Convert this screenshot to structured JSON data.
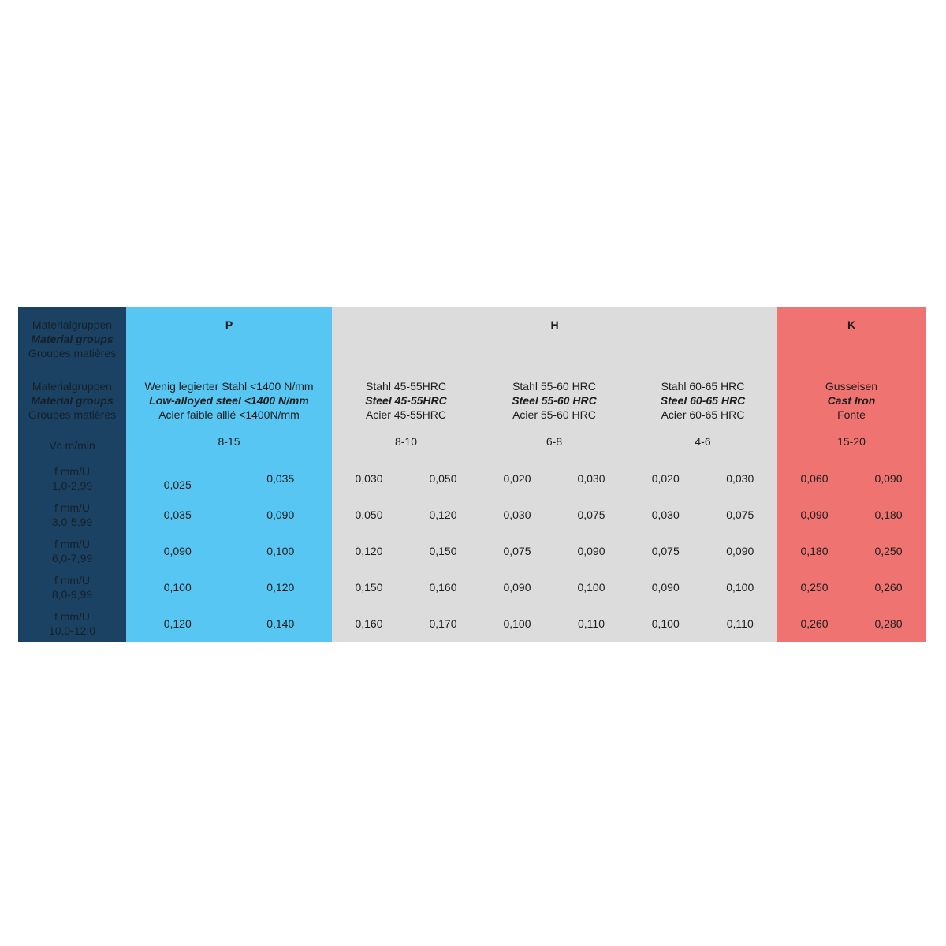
{
  "label_header": [
    "Materialgruppen",
    "Material groups",
    "Groupes matières"
  ],
  "vc_label": "Vc m/min",
  "groups": [
    {
      "code": "P",
      "color": "#57c6f2"
    },
    {
      "code": "H",
      "color": "#dcdcdc"
    },
    {
      "code": "K",
      "color": "#ef7471"
    }
  ],
  "materials": [
    {
      "de": "Wenig legierter Stahl <1400 N/mm",
      "en": "Low-alloyed steel  <1400 N/mm",
      "fr": "Acier faible allié <1400N/mm",
      "vc": "8-15"
    },
    {
      "de": "Stahl 45-55HRC",
      "en": "Steel 45-55HRC",
      "fr": "Acier 45-55HRC",
      "vc": "8-10"
    },
    {
      "de": "Stahl 55-60 HRC",
      "en": "Steel 55-60 HRC",
      "fr": "Acier 55-60  HRC",
      "vc": "6-8"
    },
    {
      "de": "Stahl 60-65 HRC",
      "en": "Steel 60-65 HRC",
      "fr": "Acier 60-65  HRC",
      "vc": "4-6"
    },
    {
      "de": "Gusseisen",
      "en": "Cast Iron",
      "fr": "Fonte",
      "vc": "15-20"
    }
  ],
  "rows": [
    {
      "label": "f mm/U",
      "range": "1,0-2,99",
      "values": [
        [
          "0,025",
          "0,035"
        ],
        [
          "0,030",
          "0,050"
        ],
        [
          "0,020",
          "0,030"
        ],
        [
          "0,020",
          "0,030"
        ],
        [
          "0,060",
          "0,090"
        ]
      ]
    },
    {
      "label": "f mm/U",
      "range": "3,0-5,99",
      "values": [
        [
          "0,035",
          "0,090"
        ],
        [
          "0,050",
          "0,120"
        ],
        [
          "0,030",
          "0,075"
        ],
        [
          "0,030",
          "0,075"
        ],
        [
          "0,090",
          "0,180"
        ]
      ]
    },
    {
      "label": "f mm/U",
      "range": "6,0-7,99",
      "values": [
        [
          "0,090",
          "0,100"
        ],
        [
          "0,120",
          "0,150"
        ],
        [
          "0,075",
          "0,090"
        ],
        [
          "0,075",
          "0,090"
        ],
        [
          "0,180",
          "0,250"
        ]
      ]
    },
    {
      "label": "f mm/U",
      "range": "8,0-9,99",
      "values": [
        [
          "0,100",
          "0,120"
        ],
        [
          "0,150",
          "0,160"
        ],
        [
          "0,090",
          "0,100"
        ],
        [
          "0,090",
          "0,100"
        ],
        [
          "0,250",
          "0,260"
        ]
      ]
    },
    {
      "label": "f mm/U",
      "range": "10,0-12,0",
      "values": [
        [
          "0,120",
          "0,140"
        ],
        [
          "0,160",
          "0,170"
        ],
        [
          "0,100",
          "0,110"
        ],
        [
          "0,100",
          "0,110"
        ],
        [
          "0,260",
          "0,280"
        ]
      ]
    }
  ]
}
